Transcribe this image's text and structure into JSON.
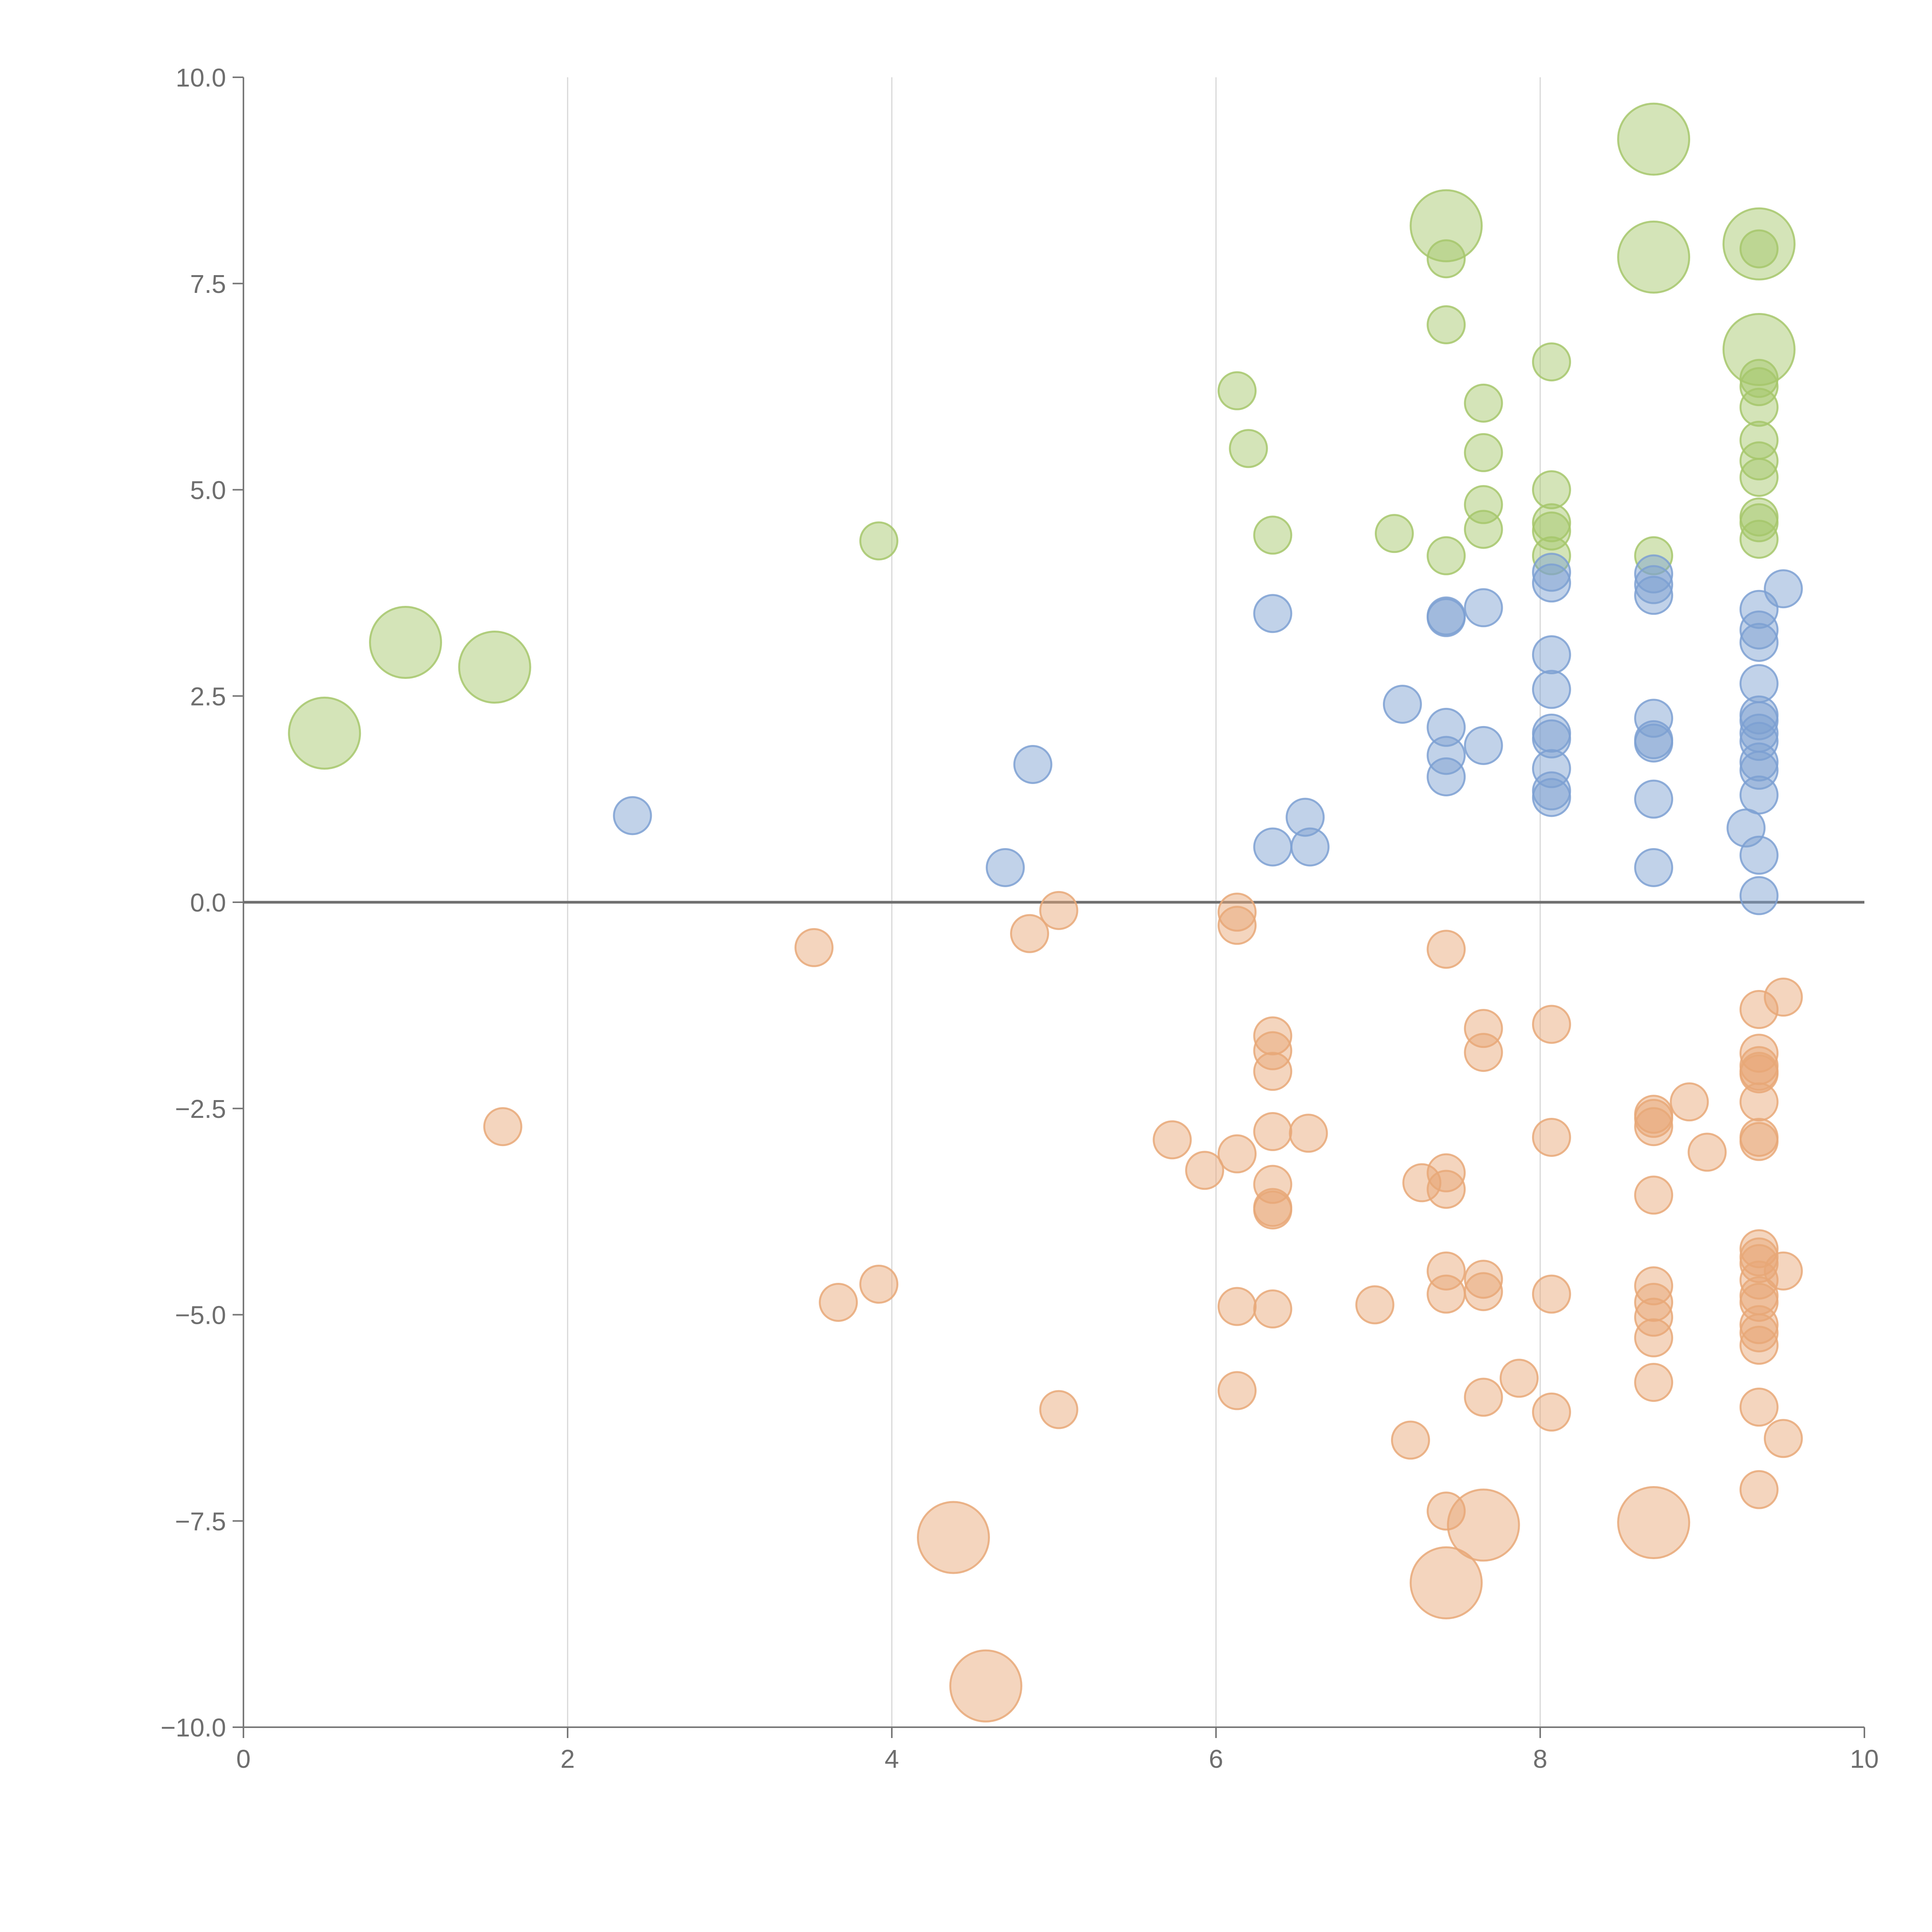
{
  "chart_data": {
    "type": "scatter",
    "title": "",
    "xlabel": "",
    "ylabel": "",
    "xlim": [
      0,
      10
    ],
    "ylim": [
      -10,
      10
    ],
    "x_ticks": [
      0,
      2,
      4,
      6,
      8,
      10
    ],
    "x_tick_labels": [
      "0",
      "2",
      "4",
      "6",
      "8",
      "10"
    ],
    "y_ticks": [
      10,
      7.5,
      5,
      2.5,
      0,
      -2.5,
      -5,
      -7.5,
      -10
    ],
    "y_tick_labels": [
      "10.0",
      "7.5",
      "5.0",
      "2.5",
      "0.0",
      "−2.5",
      "−5.0",
      "−7.5",
      "−10.0"
    ],
    "grid": "vertical",
    "zero_line": true,
    "legend": "none",
    "marker_sizes": {
      "small": 1,
      "large": 2
    },
    "series": [
      {
        "name": "green",
        "color": "#a6c76b",
        "points": [
          [
            0.5,
            2.05,
            2
          ],
          [
            1.0,
            3.15,
            2
          ],
          [
            1.55,
            2.85,
            2
          ],
          [
            3.92,
            4.38,
            1
          ],
          [
            6.13,
            6.2,
            1
          ],
          [
            6.2,
            5.5,
            1
          ],
          [
            6.35,
            4.45,
            1
          ],
          [
            7.1,
            4.47,
            1
          ],
          [
            7.42,
            8.2,
            2
          ],
          [
            7.42,
            7.8,
            1
          ],
          [
            7.42,
            7.0,
            1
          ],
          [
            7.42,
            4.2,
            1
          ],
          [
            7.65,
            6.05,
            1
          ],
          [
            7.65,
            5.45,
            1
          ],
          [
            7.65,
            4.82,
            1
          ],
          [
            7.65,
            4.52,
            1
          ],
          [
            8.07,
            6.55,
            1
          ],
          [
            8.07,
            5.0,
            1
          ],
          [
            8.07,
            4.6,
            1
          ],
          [
            8.07,
            4.5,
            1
          ],
          [
            8.07,
            4.2,
            1
          ],
          [
            8.7,
            9.25,
            2
          ],
          [
            8.7,
            7.82,
            2
          ],
          [
            8.7,
            4.2,
            1
          ],
          [
            9.35,
            7.98,
            2
          ],
          [
            9.35,
            7.92,
            1
          ],
          [
            9.35,
            6.7,
            2
          ],
          [
            9.35,
            6.35,
            1
          ],
          [
            9.35,
            6.25,
            1
          ],
          [
            9.35,
            6.0,
            1
          ],
          [
            9.35,
            5.6,
            1
          ],
          [
            9.35,
            5.35,
            1
          ],
          [
            9.35,
            5.15,
            1
          ],
          [
            9.35,
            4.67,
            1
          ],
          [
            9.35,
            4.6,
            1
          ],
          [
            9.35,
            4.4,
            1
          ]
        ]
      },
      {
        "name": "blue",
        "color": "#7da0d2",
        "points": [
          [
            2.4,
            1.05,
            1
          ],
          [
            4.7,
            0.42,
            1
          ],
          [
            4.87,
            1.67,
            1
          ],
          [
            6.35,
            3.5,
            1
          ],
          [
            6.35,
            0.67,
            1
          ],
          [
            6.55,
            1.03,
            1
          ],
          [
            6.58,
            0.67,
            1
          ],
          [
            7.15,
            2.4,
            1
          ],
          [
            7.42,
            3.47,
            1
          ],
          [
            7.42,
            3.45,
            1
          ],
          [
            7.42,
            2.12,
            1
          ],
          [
            7.42,
            1.78,
            1
          ],
          [
            7.42,
            1.52,
            1
          ],
          [
            7.65,
            3.57,
            1
          ],
          [
            7.65,
            1.9,
            1
          ],
          [
            8.07,
            4.0,
            1
          ],
          [
            8.07,
            3.87,
            1
          ],
          [
            8.07,
            3.0,
            1
          ],
          [
            8.07,
            2.58,
            1
          ],
          [
            8.07,
            2.05,
            1
          ],
          [
            8.07,
            1.98,
            1
          ],
          [
            8.07,
            1.62,
            1
          ],
          [
            8.07,
            1.35,
            1
          ],
          [
            8.07,
            1.27,
            1
          ],
          [
            8.7,
            3.98,
            1
          ],
          [
            8.7,
            3.85,
            1
          ],
          [
            8.7,
            3.72,
            1
          ],
          [
            8.7,
            2.23,
            1
          ],
          [
            8.7,
            1.97,
            1
          ],
          [
            8.7,
            1.93,
            1
          ],
          [
            8.7,
            1.25,
            1
          ],
          [
            8.7,
            0.42,
            1
          ],
          [
            9.27,
            0.9,
            1
          ],
          [
            9.35,
            3.55,
            1
          ],
          [
            9.35,
            3.3,
            1
          ],
          [
            9.35,
            3.15,
            1
          ],
          [
            9.35,
            2.65,
            1
          ],
          [
            9.35,
            2.27,
            1
          ],
          [
            9.35,
            2.2,
            1
          ],
          [
            9.35,
            2.05,
            1
          ],
          [
            9.35,
            1.95,
            1
          ],
          [
            9.35,
            1.7,
            1
          ],
          [
            9.35,
            1.6,
            1
          ],
          [
            9.35,
            1.3,
            1
          ],
          [
            9.35,
            0.57,
            1
          ],
          [
            9.35,
            0.08,
            1
          ],
          [
            9.5,
            3.8,
            1
          ]
        ]
      },
      {
        "name": "orange",
        "color": "#e8a878",
        "points": [
          [
            1.6,
            -2.72,
            1
          ],
          [
            3.52,
            -0.55,
            1
          ],
          [
            3.67,
            -4.85,
            1
          ],
          [
            3.92,
            -4.63,
            1
          ],
          [
            4.38,
            -7.7,
            2
          ],
          [
            4.58,
            -9.5,
            2
          ],
          [
            4.85,
            -0.38,
            1
          ],
          [
            5.03,
            -0.1,
            1
          ],
          [
            5.03,
            -6.15,
            1
          ],
          [
            5.73,
            -2.88,
            1
          ],
          [
            5.93,
            -3.25,
            1
          ],
          [
            6.13,
            -0.12,
            1
          ],
          [
            6.13,
            -0.28,
            1
          ],
          [
            6.13,
            -3.05,
            1
          ],
          [
            6.13,
            -4.9,
            1
          ],
          [
            6.13,
            -5.92,
            1
          ],
          [
            6.35,
            -1.62,
            1
          ],
          [
            6.35,
            -1.8,
            1
          ],
          [
            6.35,
            -2.05,
            1
          ],
          [
            6.35,
            -2.78,
            1
          ],
          [
            6.35,
            -3.42,
            1
          ],
          [
            6.35,
            -3.7,
            1
          ],
          [
            6.35,
            -3.73,
            1
          ],
          [
            6.35,
            -4.93,
            1
          ],
          [
            6.57,
            -2.8,
            1
          ],
          [
            6.98,
            -4.88,
            1
          ],
          [
            7.2,
            -6.52,
            1
          ],
          [
            7.27,
            -3.4,
            1
          ],
          [
            7.42,
            -0.57,
            1
          ],
          [
            7.42,
            -3.28,
            1
          ],
          [
            7.42,
            -3.48,
            1
          ],
          [
            7.42,
            -4.47,
            1
          ],
          [
            7.42,
            -4.75,
            1
          ],
          [
            7.42,
            -7.38,
            1
          ],
          [
            7.42,
            -8.25,
            2
          ],
          [
            7.65,
            -1.53,
            1
          ],
          [
            7.65,
            -1.82,
            1
          ],
          [
            7.65,
            -4.57,
            1
          ],
          [
            7.65,
            -4.72,
            1
          ],
          [
            7.65,
            -6.0,
            1
          ],
          [
            7.65,
            -7.55,
            2
          ],
          [
            7.87,
            -5.77,
            1
          ],
          [
            8.07,
            -1.48,
            1
          ],
          [
            8.07,
            -2.85,
            1
          ],
          [
            8.07,
            -4.75,
            1
          ],
          [
            8.07,
            -6.18,
            1
          ],
          [
            8.7,
            -2.57,
            1
          ],
          [
            8.7,
            -2.62,
            1
          ],
          [
            8.7,
            -2.72,
            1
          ],
          [
            8.7,
            -3.55,
            1
          ],
          [
            8.7,
            -4.65,
            1
          ],
          [
            8.7,
            -4.85,
            1
          ],
          [
            8.7,
            -5.03,
            1
          ],
          [
            8.7,
            -5.28,
            1
          ],
          [
            8.7,
            -5.82,
            1
          ],
          [
            8.7,
            -7.52,
            2
          ],
          [
            8.92,
            -2.42,
            1
          ],
          [
            9.03,
            -3.03,
            1
          ],
          [
            9.35,
            -1.3,
            1
          ],
          [
            9.35,
            -1.83,
            1
          ],
          [
            9.35,
            -1.98,
            1
          ],
          [
            9.35,
            -2.05,
            1
          ],
          [
            9.35,
            -2.08,
            1
          ],
          [
            9.35,
            -2.42,
            1
          ],
          [
            9.35,
            -2.85,
            1
          ],
          [
            9.35,
            -2.9,
            1
          ],
          [
            9.35,
            -4.2,
            1
          ],
          [
            9.35,
            -4.3,
            1
          ],
          [
            9.35,
            -4.38,
            1
          ],
          [
            9.35,
            -4.58,
            1
          ],
          [
            9.35,
            -4.77,
            1
          ],
          [
            9.35,
            -4.85,
            1
          ],
          [
            9.35,
            -5.12,
            1
          ],
          [
            9.35,
            -5.22,
            1
          ],
          [
            9.35,
            -5.37,
            1
          ],
          [
            9.35,
            -6.12,
            1
          ],
          [
            9.35,
            -7.12,
            1
          ],
          [
            9.5,
            -1.15,
            1
          ],
          [
            9.5,
            -4.47,
            1
          ],
          [
            9.5,
            -6.5,
            1
          ]
        ]
      }
    ]
  }
}
